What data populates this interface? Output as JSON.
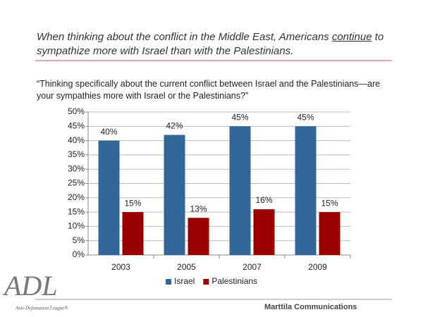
{
  "slide": {
    "title": {
      "before": "When thinking about the conflict in the Middle East, Americans ",
      "underlined": "continue",
      "after": " to sympathize more with Israel than with the Palestinians."
    },
    "question": "“Thinking specifically about the current conflict between Israel and the Palestinians—are your sympathies more with Israel or the Palestinians?”",
    "logo": {
      "mark": "ADL",
      "name": "Anti-Defamation League®"
    },
    "footer": "Marttila Communications"
  },
  "chart_data": {
    "type": "bar",
    "categories": [
      "2003",
      "2005",
      "2007",
      "2009"
    ],
    "series": [
      {
        "name": "Israel",
        "color": "#336699",
        "values": [
          40,
          42,
          45,
          45
        ],
        "value_labels": [
          "40%",
          "42%",
          "45%",
          "45%"
        ]
      },
      {
        "name": "Palestinians",
        "color": "#990000",
        "values": [
          15,
          13,
          16,
          15
        ],
        "value_labels": [
          "15%",
          "13%",
          "16%",
          "15%"
        ]
      }
    ],
    "ylim": [
      0,
      50
    ],
    "yticks": [
      {
        "value": 0,
        "label": "0%"
      },
      {
        "value": 5,
        "label": "5%"
      },
      {
        "value": 10,
        "label": "10%"
      },
      {
        "value": 15,
        "label": "15%"
      },
      {
        "value": 20,
        "label": "20%"
      },
      {
        "value": 25,
        "label": "25%"
      },
      {
        "value": 30,
        "label": "30%"
      },
      {
        "value": 35,
        "label": "35%"
      },
      {
        "value": 40,
        "label": "40%"
      },
      {
        "value": 45,
        "label": "45%"
      },
      {
        "value": 50,
        "label": "50%"
      }
    ],
    "grid": true,
    "legend": "bottom"
  }
}
